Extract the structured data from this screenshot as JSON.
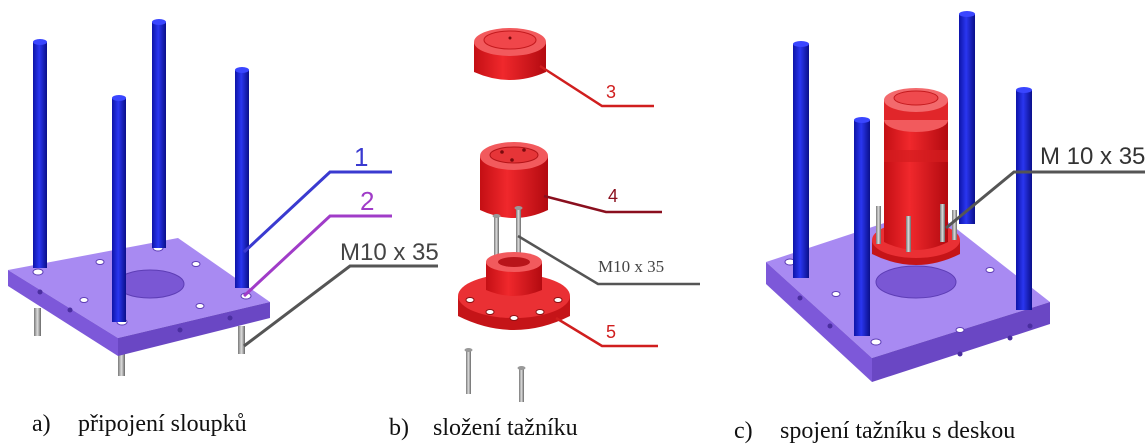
{
  "panels": {
    "a": {
      "caption_letter": "a)",
      "caption_text": "připojení sloupků",
      "callout_1": "1",
      "callout_2": "2",
      "callout_bolt": "M10 x 35"
    },
    "b": {
      "caption_letter": "b)",
      "caption_text": "složení tažníku",
      "callout_3": "3",
      "callout_4": "4",
      "callout_5": "5",
      "callout_bolt": "M10 x 35"
    },
    "c": {
      "caption_letter": "c)",
      "caption_text": "spojení tažníku s deskou",
      "callout_bolt": "M 10 x 35"
    }
  },
  "colors": {
    "column_blue": "#1a22c9",
    "plate_purple": "#8f6be8",
    "part_red": "#e3171c",
    "callout_blue": "#3a3ad0",
    "callout_purple": "#a03cc8",
    "callout_red": "#d01e1e",
    "callout_darkred": "#8a0f1e",
    "callout_gray": "#555555"
  }
}
